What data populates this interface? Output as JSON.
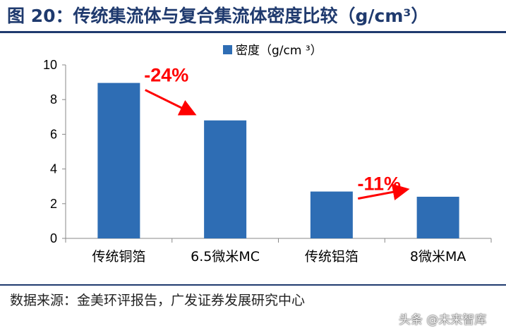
{
  "header": {
    "title": "图 20：传统集流体与复合集流体密度比较（g/cm³）"
  },
  "footer": {
    "source": "数据来源：金美环评报告，广发证券发展研究中心",
    "watermark": "头条 @未来智库"
  },
  "colors": {
    "bar": "#2e6db4",
    "accent": "#ff0000",
    "title": "#1f3a6e"
  },
  "chart_data": {
    "type": "bar",
    "categories": [
      "传统铜箔",
      "6.5微米MC",
      "传统铝箔",
      "8微米MA"
    ],
    "series": [
      {
        "name": "密度（g/cm ³）",
        "values": [
          8.96,
          6.8,
          2.7,
          2.4
        ]
      }
    ],
    "ylim": [
      0,
      10
    ],
    "yticks": [
      0,
      2,
      4,
      6,
      8,
      10
    ],
    "legend": "top-center",
    "annotations": [
      {
        "text": "-24%",
        "from": 0,
        "to": 1
      },
      {
        "text": "-11%",
        "from": 2,
        "to": 3
      }
    ]
  }
}
